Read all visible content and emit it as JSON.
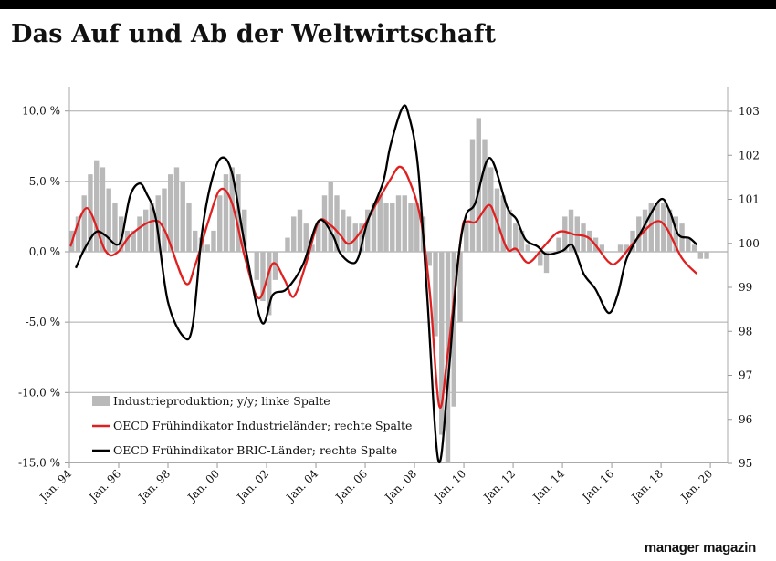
{
  "title": "Das Auf und Ab der Weltwirtschaft",
  "logo": "manager magazin",
  "chart_data": {
    "type": "bar+line",
    "title": "Das Auf und Ab der Weltwirtschaft",
    "x_ticks": [
      "Jan. 94",
      "Jan. 96",
      "Jan. 98",
      "Jan. 00",
      "Jan. 02",
      "Jan. 04",
      "Jan. 06",
      "Jan. 08",
      "Jan. 10",
      "Jan. 12",
      "Jan. 14",
      "Jan. 16",
      "Jan. 18",
      "Jan. 20"
    ],
    "x_range": [
      1994,
      2020.7
    ],
    "y_left": {
      "ticks": [
        "10,0 %",
        "5,0 %",
        "0,0 %",
        "-5,0 %",
        "-10,0 %",
        "-15,0 %"
      ],
      "tick_values": [
        10,
        5,
        0,
        -5,
        -10,
        -15
      ],
      "range": [
        -15,
        11
      ]
    },
    "y_right": {
      "ticks": [
        "103",
        "102",
        "101",
        "100",
        "99",
        "98",
        "97",
        "96",
        "95"
      ],
      "tick_values": [
        103,
        102,
        101,
        100,
        99,
        98,
        97,
        96,
        95
      ],
      "range": [
        95,
        103.3
      ]
    },
    "grid": "horizontal, left axis",
    "legend_position": "bottom-left",
    "bars": {
      "name": "Industrieproduktion; y/y; linke Spalte",
      "color": "#b9b9b9",
      "start": 1994.0,
      "step": 0.25,
      "values": [
        1.5,
        2.5,
        4,
        5.5,
        6.5,
        6,
        4.5,
        3.5,
        2.5,
        1.5,
        1.5,
        2.5,
        3,
        3.5,
        4,
        4.5,
        5.5,
        6,
        5,
        3.5,
        1.5,
        1,
        0.5,
        1.5,
        4,
        5.5,
        6,
        5.5,
        3,
        0,
        -2,
        -3.5,
        -4.5,
        -2,
        0,
        1,
        2.5,
        3,
        2,
        0.5,
        2,
        4,
        5,
        4,
        3,
        2.5,
        2,
        2,
        3,
        3.5,
        4,
        3.5,
        3.5,
        4,
        4,
        3.5,
        3.5,
        2.5,
        -1,
        -6,
        -13,
        -15,
        -11,
        -5,
        2,
        8,
        9.5,
        8,
        6,
        4.5,
        4,
        3,
        2,
        1.5,
        0.5,
        0,
        -1,
        -1.5,
        0,
        1,
        2.5,
        3,
        2.5,
        2,
        1.5,
        1,
        0.5,
        0,
        0,
        0.5,
        0.5,
        1.5,
        2.5,
        3,
        3.5,
        3.5,
        3.5,
        3,
        2.5,
        2,
        1,
        0.5,
        -0.5,
        -0.5
      ]
    },
    "series": [
      {
        "name": "OECD Frühindikator Industrieländer; rechte Spalte",
        "axis": "right",
        "color": "#e02020",
        "x": [
          1994.04,
          1994.71,
          1995.46,
          1995.94,
          1996.5,
          1997.4,
          1997.88,
          1998.7,
          1999.11,
          1999.63,
          2000.12,
          2000.6,
          2001.13,
          2001.69,
          2002.25,
          2002.73,
          2003.1,
          2003.59,
          2004.11,
          2004.6,
          2004.97,
          2005.34,
          2005.83,
          2006.46,
          2007.02,
          2007.4,
          2007.77,
          2008.25,
          2008.63,
          2009.0,
          2009.34,
          2009.9,
          2010.12,
          2010.49,
          2011.01,
          2011.31,
          2011.76,
          2012.13,
          2012.62,
          2013.25,
          2013.85,
          2014.49,
          2015.12,
          2015.87,
          2016.24,
          2016.99,
          2017.77,
          2018.22,
          2018.85,
          2019.45
        ],
        "y": [
          99.93,
          100.8,
          99.83,
          99.79,
          100.2,
          100.51,
          100.28,
          99.1,
          99.52,
          100.49,
          101.22,
          100.91,
          99.66,
          98.75,
          99.54,
          99.17,
          98.79,
          99.52,
          100.49,
          100.41,
          100.2,
          99.99,
          100.28,
          100.91,
          101.45,
          101.74,
          101.45,
          100.55,
          98.83,
          96.31,
          97.45,
          100.2,
          100.49,
          100.49,
          100.87,
          100.55,
          99.87,
          99.87,
          99.56,
          99.93,
          100.26,
          100.2,
          100.1,
          99.58,
          99.58,
          100.08,
          100.49,
          100.35,
          99.66,
          99.31
        ]
      },
      {
        "name": "OECD Frühindikator BRIC-Länder; rechte Spalte",
        "axis": "right",
        "color": "#000000",
        "x": [
          1994.26,
          1994.63,
          1995.08,
          1995.46,
          1995.9,
          1996.13,
          1996.46,
          1996.84,
          1997.13,
          1997.51,
          1997.99,
          1998.63,
          1999.0,
          1999.37,
          1999.75,
          2000.16,
          2000.6,
          2001.13,
          2001.8,
          2002.25,
          2002.81,
          2003.48,
          2004.11,
          2004.67,
          2004.97,
          2005.42,
          2005.72,
          2006.09,
          2006.72,
          2007.02,
          2007.51,
          2007.77,
          2008.14,
          2008.51,
          2008.96,
          2009.34,
          2009.75,
          2010.08,
          2010.46,
          2011.05,
          2011.76,
          2012.13,
          2012.51,
          2012.99,
          2013.37,
          2014.0,
          2014.41,
          2014.86,
          2015.34,
          2015.87,
          2016.24,
          2016.61,
          2017.21,
          2017.96,
          2018.33,
          2018.7,
          2019.15,
          2019.45
        ],
        "y": [
          99.44,
          99.89,
          100.26,
          100.18,
          99.97,
          100.14,
          101.07,
          101.36,
          101.13,
          100.55,
          98.69,
          97.88,
          98.13,
          100.2,
          101.38,
          101.94,
          101.59,
          99.93,
          98.21,
          98.83,
          98.96,
          99.52,
          100.51,
          100.2,
          99.79,
          99.56,
          99.68,
          100.49,
          101.38,
          102.21,
          103.08,
          102.9,
          101.74,
          98.83,
          95.08,
          96.76,
          99.52,
          100.62,
          100.91,
          101.94,
          100.82,
          100.55,
          100.08,
          99.93,
          99.75,
          99.83,
          99.95,
          99.31,
          98.96,
          98.42,
          98.83,
          99.66,
          100.28,
          100.99,
          100.76,
          100.2,
          100.12,
          99.97
        ]
      }
    ]
  }
}
